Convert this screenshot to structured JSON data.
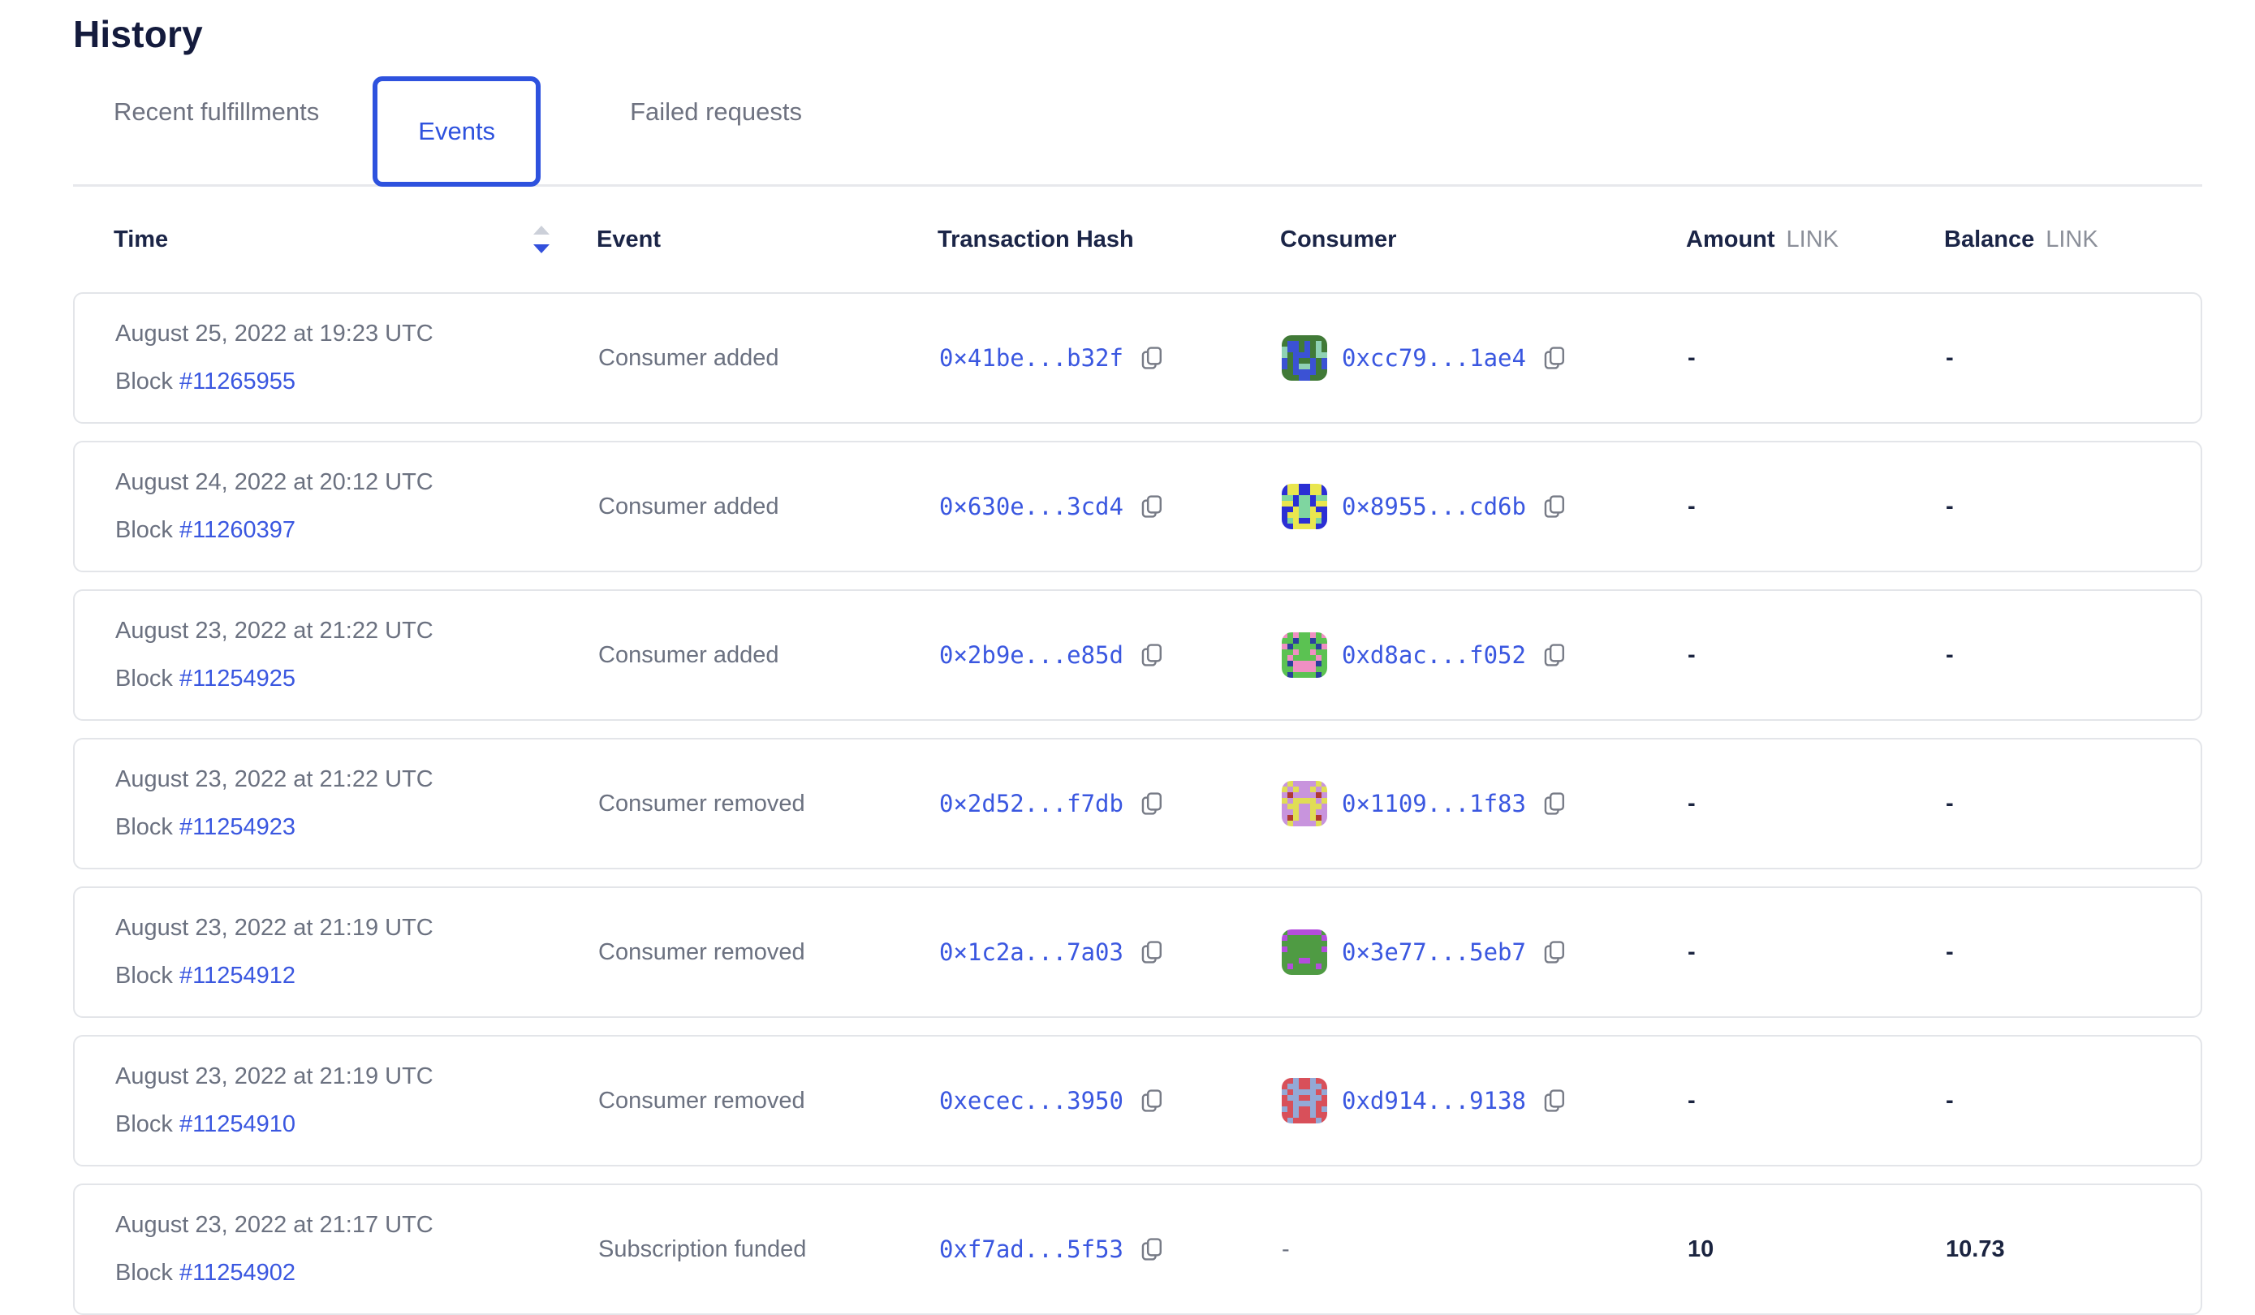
{
  "page": {
    "title": "History"
  },
  "tabs": [
    {
      "label": "Recent fulfillments",
      "active": false
    },
    {
      "label": "Events",
      "active": true
    },
    {
      "label": "Failed requests",
      "active": false
    }
  ],
  "colors": {
    "accent_blue": "#2e52de",
    "link_blue": "#3a57e0",
    "heading_navy": "#141b3d",
    "muted_gray": "#6b7180",
    "unit_gray": "#8b8f99",
    "card_border": "#e3e5e9",
    "sort_up_gray": "#ccd0d9",
    "sort_down_blue": "#3350dc",
    "copy_icon_gray": "#777b86"
  },
  "table": {
    "columns": {
      "time": "Time",
      "event": "Event",
      "tx": "Transaction Hash",
      "consumer": "Consumer",
      "amount": "Amount",
      "balance": "Balance",
      "unit": "LINK"
    },
    "sort": {
      "column": "Time",
      "direction": "desc"
    },
    "rows": [
      {
        "date": "August 25, 2022 at 19:23 UTC",
        "block_label": "Block",
        "block": "#11265955",
        "event": "Consumer added",
        "tx_hash": "0×41be...b32f",
        "consumer": {
          "address": "0xcc79...1ae4",
          "avatar": {
            "palette": {
              "a": "#417a37",
              "b": "#3b52d4",
              "c": "#8fd2b4"
            },
            "grid": [
              "aaaaaaaa",
              "abbabaca",
              "cbbabaca",
              "cabbbacc",
              "babaabab",
              "babccbab",
              "aabbbbaa",
              "aaabbaaa"
            ]
          }
        },
        "amount": "-",
        "balance": "-"
      },
      {
        "date": "August 24, 2022 at 20:12 UTC",
        "block_label": "Block",
        "block": "#11260397",
        "event": "Consumer added",
        "tx_hash": "0×630e...3cd4",
        "consumer": {
          "address": "0×8955...cd6b",
          "avatar": {
            "palette": {
              "a": "#2b2fd4",
              "b": "#e9e64f",
              "c": "#7fd6a0"
            },
            "grid": [
              "abbaabba",
              "abbaabba",
              "ccaccacc",
              "bbaccabb",
              "aabccbaa",
              "abbccbba",
              "acbaabca",
              "aabbbbaa"
            ]
          }
        },
        "amount": "-",
        "balance": "-"
      },
      {
        "date": "August 23, 2022 at 21:22 UTC",
        "block_label": "Block",
        "block": "#11254925",
        "event": "Consumer added",
        "tx_hash": "0×2b9e...e85d",
        "consumer": {
          "address": "0xd8ac...f052",
          "avatar": {
            "palette": {
              "a": "#5bc252",
              "b": "#ef8fc3",
              "c": "#2b3f9e"
            },
            "grid": [
              "babaabab",
              "aacaacaa",
              "bcaaaacb",
              "aabaabaa",
              "abaaaaba",
              "acbbbbca",
              "aabbbbaa",
              "acaaaaca"
            ]
          }
        },
        "amount": "-",
        "balance": "-"
      },
      {
        "date": "August 23, 2022 at 21:22 UTC",
        "block_label": "Block",
        "block": "#11254923",
        "event": "Consumer removed",
        "tx_hash": "0×2d52...f7db",
        "consumer": {
          "address": "0×1109...1f83",
          "avatar": {
            "palette": {
              "a": "#c894dd",
              "b": "#e0dd55",
              "c": "#b03a31"
            },
            "grid": [
              "abaaaaba",
              "babaabab",
              "acaaaaca",
              "babbbbab",
              "abbaabba",
              "aabaabaa",
              "acbaabca",
              "abaaaaba"
            ]
          }
        },
        "amount": "-",
        "balance": "-"
      },
      {
        "date": "August 23, 2022 at 21:19 UTC",
        "block_label": "Block",
        "block": "#11254912",
        "event": "Consumer removed",
        "tx_hash": "0×1c2a...7a03",
        "consumer": {
          "address": "0×3e77...5eb7",
          "avatar": {
            "palette": {
              "a": "#4f9b43",
              "b": "#b44ddd"
            },
            "grid": [
              "abbbbbba",
              "baaaaaab",
              "aaaaaaaa",
              "baaaaaab",
              "aaaaaaaa",
              "aaabbaaa",
              "abaaaaba",
              "aaaaaaaa"
            ]
          }
        },
        "amount": "-",
        "balance": "-"
      },
      {
        "date": "August 23, 2022 at 21:19 UTC",
        "block_label": "Block",
        "block": "#11254910",
        "event": "Consumer removed",
        "tx_hash": "0xecec...3950",
        "consumer": {
          "address": "0xd914...9138",
          "avatar": {
            "palette": {
              "a": "#d8505a",
              "b": "#93a9d6"
            },
            "grid": [
              "aabaabaa",
              "abbaabba",
              "babbbbab",
              "abbaabba",
              "aabbbbaa",
              "babaabab",
              "aabaabaa",
              "abaaaaba"
            ]
          }
        },
        "amount": "-",
        "balance": "-"
      },
      {
        "date": "August 23, 2022 at 21:17 UTC",
        "block_label": "Block",
        "block": "#11254902",
        "event": "Subscription funded",
        "tx_hash": "0xf7ad...5f53",
        "consumer": null,
        "consumer_placeholder": "-",
        "amount": "10",
        "balance": "10.73"
      }
    ]
  }
}
